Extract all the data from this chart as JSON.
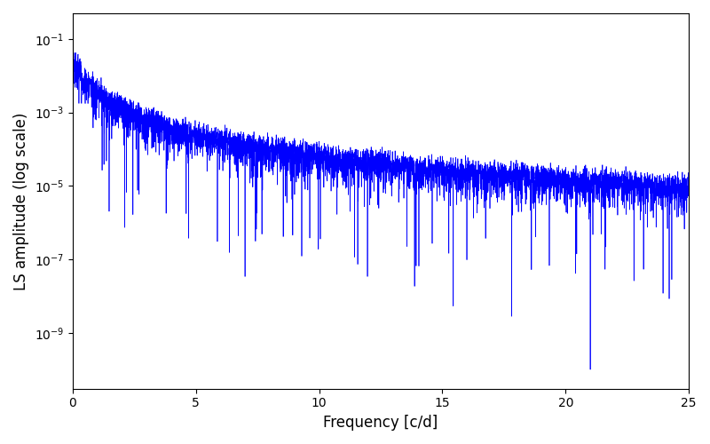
{
  "xlabel": "Frequency [c/d]",
  "ylabel": "LS amplitude (log scale)",
  "xlim": [
    0,
    25
  ],
  "ylim": [
    3e-11,
    0.5
  ],
  "line_color": "#0000ff",
  "line_width": 0.5,
  "yscale": "log",
  "seed": 7,
  "n_points": 5000,
  "freq_max": 25.0,
  "figsize": [
    8.0,
    5.0
  ],
  "dpi": 100
}
